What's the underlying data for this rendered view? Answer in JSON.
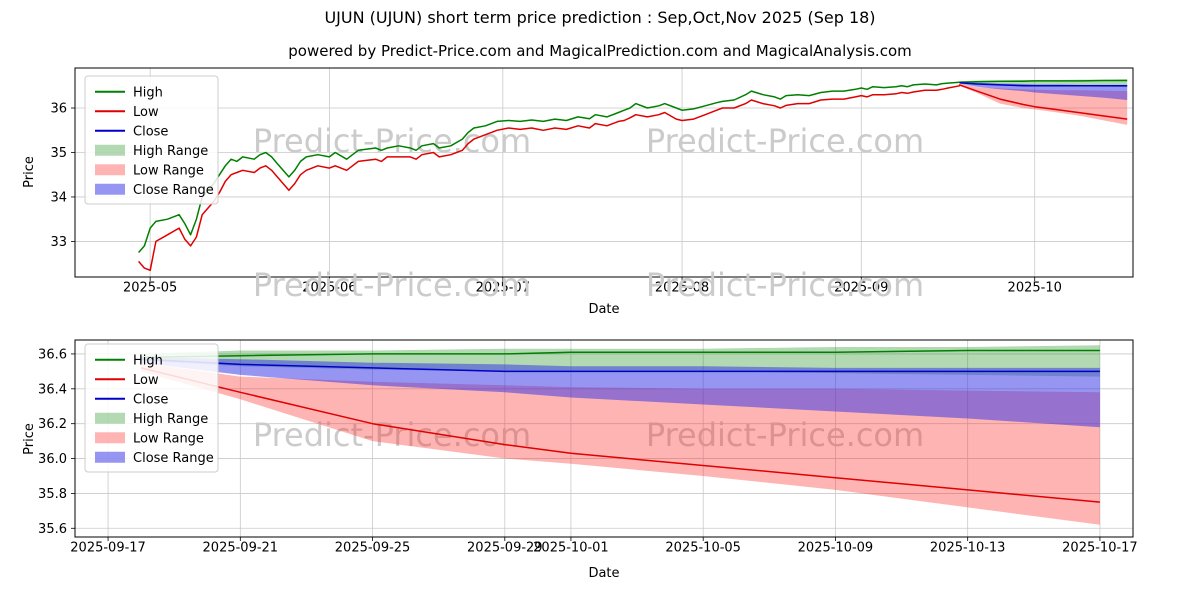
{
  "title": "UJUN (UJUN) short term price prediction : Sep,Oct,Nov 2025 (Sep 18)",
  "subtitle": "powered by Predict-Price.com and MagicalPrediction.com and MagicalAnalysis.com",
  "watermark": "Predict-Price.com",
  "colors": {
    "high": "#008000",
    "low": "#e00000",
    "close": "#0000c8",
    "high_range": "rgba(0,128,0,0.30)",
    "low_range": "rgba(255,40,40,0.35)",
    "close_range": "rgba(45,45,230,0.50)",
    "watermark": "#cbcbcb",
    "grid": "#c9c9c9"
  },
  "legend_items": [
    {
      "label": "High",
      "key": "high",
      "swatch": "line"
    },
    {
      "label": "Low",
      "key": "low",
      "swatch": "line"
    },
    {
      "label": "Close",
      "key": "close",
      "swatch": "line"
    },
    {
      "label": "High Range",
      "key": "high_range",
      "swatch": "band"
    },
    {
      "label": "Low Range",
      "key": "low_range",
      "swatch": "band"
    },
    {
      "label": "Close Range",
      "key": "close_range",
      "swatch": "band"
    }
  ],
  "chart_data": [
    {
      "type": "line",
      "title": "UJUN (UJUN) short term price prediction : Sep,Oct,Nov 2025 (Sep 18)",
      "xlabel": "Date",
      "ylabel": "Price",
      "grid": true,
      "legend_position": "upper left",
      "x_ticks": [
        "2025-05",
        "2025-06",
        "2025-07",
        "2025-08",
        "2025-09",
        "2025-10"
      ],
      "y_ticks": [
        "33",
        "34",
        "35",
        "36"
      ],
      "xlim": [
        "2025-04-18",
        "2025-10-18"
      ],
      "ylim": [
        32.2,
        36.9
      ],
      "history": {
        "dates": [
          "2025-04-29",
          "2025-04-30",
          "2025-05-01",
          "2025-05-02",
          "2025-05-04",
          "2025-05-06",
          "2025-05-07",
          "2025-05-08",
          "2025-05-09",
          "2025-05-10",
          "2025-05-12",
          "2025-05-13",
          "2025-05-14",
          "2025-05-15",
          "2025-05-16",
          "2025-05-17",
          "2025-05-19",
          "2025-05-20",
          "2025-05-21",
          "2025-05-22",
          "2025-05-23",
          "2025-05-25",
          "2025-05-26",
          "2025-05-27",
          "2025-05-28",
          "2025-05-30",
          "2025-06-01",
          "2025-06-02",
          "2025-06-04",
          "2025-06-05",
          "2025-06-06",
          "2025-06-09",
          "2025-06-10",
          "2025-06-11",
          "2025-06-13",
          "2025-06-15",
          "2025-06-16",
          "2025-06-17",
          "2025-06-19",
          "2025-06-20",
          "2025-06-22",
          "2025-06-24",
          "2025-06-25",
          "2025-06-26",
          "2025-06-28",
          "2025-06-30",
          "2025-07-02",
          "2025-07-04",
          "2025-07-06",
          "2025-07-08",
          "2025-07-10",
          "2025-07-12",
          "2025-07-14",
          "2025-07-16",
          "2025-07-17",
          "2025-07-19",
          "2025-07-21",
          "2025-07-22",
          "2025-07-23",
          "2025-07-24",
          "2025-07-26",
          "2025-07-28",
          "2025-07-29",
          "2025-07-31",
          "2025-08-01",
          "2025-08-03",
          "2025-08-05",
          "2025-08-07",
          "2025-08-08",
          "2025-08-10",
          "2025-08-12",
          "2025-08-13",
          "2025-08-15",
          "2025-08-17",
          "2025-08-18",
          "2025-08-19",
          "2025-08-21",
          "2025-08-23",
          "2025-08-25",
          "2025-08-27",
          "2025-08-29",
          "2025-08-31",
          "2025-09-01",
          "2025-09-02",
          "2025-09-03",
          "2025-09-05",
          "2025-09-07",
          "2025-09-08",
          "2025-09-09",
          "2025-09-10",
          "2025-09-12",
          "2025-09-14",
          "2025-09-15",
          "2025-09-16",
          "2025-09-18"
        ],
        "high": [
          32.75,
          32.9,
          33.3,
          33.45,
          33.5,
          33.6,
          33.4,
          33.15,
          33.5,
          34.0,
          34.3,
          34.5,
          34.7,
          34.85,
          34.8,
          34.9,
          34.85,
          34.95,
          35.0,
          34.9,
          34.75,
          34.45,
          34.6,
          34.8,
          34.9,
          34.95,
          34.9,
          35.0,
          34.85,
          34.95,
          35.05,
          35.1,
          35.05,
          35.1,
          35.15,
          35.1,
          35.05,
          35.15,
          35.2,
          35.1,
          35.15,
          35.3,
          35.45,
          35.55,
          35.6,
          35.7,
          35.72,
          35.7,
          35.73,
          35.7,
          35.75,
          35.72,
          35.8,
          35.76,
          35.85,
          35.8,
          35.9,
          35.95,
          36.0,
          36.1,
          36.0,
          36.05,
          36.1,
          36.0,
          35.95,
          35.98,
          36.05,
          36.12,
          36.15,
          36.18,
          36.3,
          36.38,
          36.3,
          36.25,
          36.2,
          36.28,
          36.3,
          36.28,
          36.35,
          36.38,
          36.38,
          36.42,
          36.45,
          36.42,
          36.48,
          36.46,
          36.48,
          36.5,
          36.48,
          36.52,
          36.54,
          36.52,
          36.55,
          36.56,
          36.58
        ],
        "low": [
          32.55,
          32.4,
          32.35,
          33.0,
          33.15,
          33.3,
          33.05,
          32.9,
          33.1,
          33.6,
          33.9,
          34.1,
          34.35,
          34.5,
          34.55,
          34.6,
          34.55,
          34.65,
          34.7,
          34.6,
          34.45,
          34.15,
          34.3,
          34.5,
          34.6,
          34.7,
          34.65,
          34.7,
          34.6,
          34.7,
          34.8,
          34.85,
          34.8,
          34.9,
          34.9,
          34.9,
          34.85,
          34.95,
          35.0,
          34.9,
          34.95,
          35.05,
          35.2,
          35.3,
          35.4,
          35.5,
          35.55,
          35.52,
          35.55,
          35.5,
          35.55,
          35.52,
          35.6,
          35.55,
          35.65,
          35.6,
          35.7,
          35.72,
          35.78,
          35.85,
          35.8,
          35.85,
          35.9,
          35.75,
          35.72,
          35.75,
          35.85,
          35.95,
          36.0,
          36.0,
          36.1,
          36.18,
          36.1,
          36.05,
          36.0,
          36.06,
          36.1,
          36.1,
          36.18,
          36.2,
          36.2,
          36.25,
          36.28,
          36.25,
          36.3,
          36.3,
          36.32,
          36.35,
          36.33,
          36.36,
          36.4,
          36.4,
          36.42,
          36.45,
          36.5
        ]
      },
      "forecast": {
        "dates": [
          "2025-09-18",
          "2025-09-21",
          "2025-09-25",
          "2025-09-29",
          "2025-10-01",
          "2025-10-05",
          "2025-10-09",
          "2025-10-13",
          "2025-10-17"
        ],
        "high": [
          36.58,
          36.59,
          36.6,
          36.6,
          36.61,
          36.61,
          36.61,
          36.62,
          36.62
        ],
        "low": [
          36.52,
          36.38,
          36.2,
          36.08,
          36.03,
          35.96,
          35.89,
          35.82,
          35.75
        ],
        "close": [
          36.57,
          36.54,
          36.52,
          36.5,
          36.5,
          36.5,
          36.5,
          36.5,
          36.5
        ],
        "high_range": {
          "upper": [
            36.6,
            36.62,
            36.62,
            36.63,
            36.63,
            36.63,
            36.64,
            36.64,
            36.65
          ],
          "lower": [
            36.56,
            36.53,
            36.51,
            36.5,
            36.5,
            36.5,
            36.49,
            36.48,
            36.47
          ]
        },
        "low_range": {
          "upper": [
            36.55,
            36.47,
            36.44,
            36.42,
            36.41,
            36.4,
            36.4,
            36.39,
            36.38
          ],
          "lower": [
            36.5,
            36.34,
            36.1,
            36.0,
            35.97,
            35.9,
            35.82,
            35.72,
            35.62
          ]
        },
        "close_range": {
          "upper": [
            36.58,
            36.57,
            36.55,
            36.54,
            36.53,
            36.53,
            36.52,
            36.52,
            36.52
          ],
          "lower": [
            36.55,
            36.48,
            36.42,
            36.38,
            36.35,
            36.31,
            36.27,
            36.23,
            36.18
          ]
        }
      }
    },
    {
      "type": "line",
      "xlabel": "Date",
      "ylabel": "Price",
      "grid": true,
      "legend_position": "upper left",
      "series_source": "chart_data[0].forecast (zoomed prediction window)",
      "x_ticks": [
        "2025-09-17",
        "2025-09-21",
        "2025-09-25",
        "2025-09-29",
        "2025-10-01",
        "2025-10-05",
        "2025-10-09",
        "2025-10-13",
        "2025-10-17"
      ],
      "y_ticks": [
        "35.6",
        "35.8",
        "36.0",
        "36.2",
        "36.4",
        "36.6"
      ],
      "xlim": [
        "2025-09-16",
        "2025-10-18"
      ],
      "ylim": [
        35.55,
        36.68
      ]
    }
  ]
}
